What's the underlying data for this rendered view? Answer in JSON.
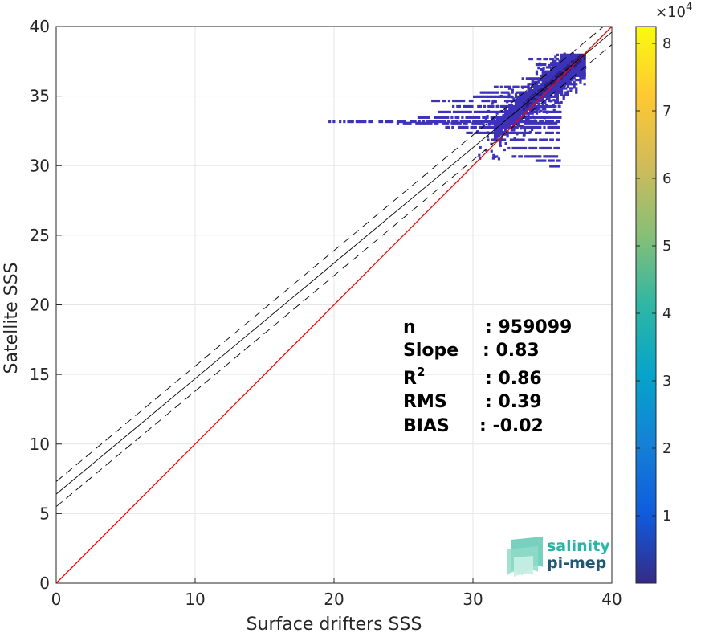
{
  "chart_data": {
    "type": "heatmap",
    "xlabel": "Surface drifters SSS",
    "ylabel": "Satellite SSS",
    "xlim": [
      0,
      40
    ],
    "ylim": [
      0,
      40
    ],
    "xticks": [
      "0",
      "10",
      "20",
      "30",
      "40"
    ],
    "yticks": [
      "0",
      "5",
      "10",
      "15",
      "20",
      "25",
      "30",
      "35",
      "40"
    ],
    "grid": true,
    "identity_line": {
      "color": "#ff0000",
      "slope": 1,
      "intercept": 0
    },
    "regression_line": {
      "slope": 0.83,
      "intercept": 6.4,
      "band_offset": 0.9,
      "color": "#000000"
    },
    "density_extent": {
      "x": [
        19.5,
        38
      ],
      "y": [
        29.8,
        38
      ]
    },
    "colorbar": {
      "min": 0,
      "max": 82500,
      "ticks": [
        "1",
        "2",
        "3",
        "4",
        "5",
        "6",
        "7",
        "8"
      ],
      "exponent": "10",
      "exponent_power": "4",
      "multiplier": "×"
    },
    "stats": [
      {
        "label": "n",
        "sep": ": 959099",
        "sup": ""
      },
      {
        "label": "Slope",
        "sep": ": 0.83",
        "sup": ""
      },
      {
        "label": "R",
        "sep": ": 0.86",
        "sup": "2"
      },
      {
        "label": "RMS",
        "sep": ": 0.39",
        "sup": ""
      },
      {
        "label": "BIAS",
        "sep": ": -0.02",
        "sup": ""
      }
    ]
  },
  "logo": {
    "line1": "salinity",
    "line2": "pi-mep",
    "color1": "#2bb5a6",
    "color2": "#1e5a74"
  }
}
